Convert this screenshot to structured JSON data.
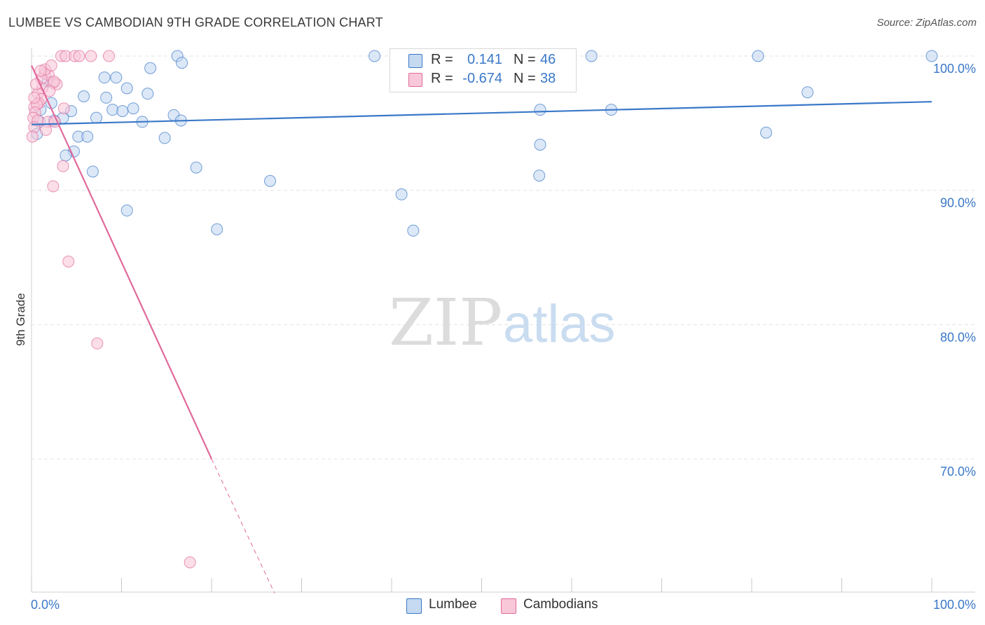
{
  "title": "LUMBEE VS CAMBODIAN 9TH GRADE CORRELATION CHART",
  "source": "Source: ZipAtlas.com",
  "watermark": {
    "zip": "ZIP",
    "atlas": "atlas"
  },
  "colors": {
    "lumbee": "#3a78c8",
    "lumbee_fill": "#c5d9f1",
    "cambodian": "#e0699a",
    "cambodian_fill": "#f8c8d8",
    "grid": "#e3e3e3",
    "axis_label": "#3a78c8"
  },
  "stats": [
    {
      "r_label": "R =",
      "r_value": "0.141",
      "n_label": "N =",
      "n_value": "46"
    },
    {
      "r_label": "R =",
      "r_value": "-0.674",
      "n_label": "N =",
      "n_value": "38"
    }
  ],
  "legend": [
    {
      "label": "Lumbee"
    },
    {
      "label": "Cambodians"
    }
  ],
  "chart_data": {
    "type": "scatter",
    "title": "LUMBEE VS CAMBODIAN 9TH GRADE CORRELATION CHART",
    "xlabel": "",
    "ylabel": "9th Grade",
    "xlim": [
      0,
      100
    ],
    "ylim": [
      60,
      100
    ],
    "x_tick_labels": [
      "0.0%",
      "100.0%"
    ],
    "y_ticks": [
      70,
      80,
      90,
      100
    ],
    "y_tick_labels": [
      "70.0%",
      "80.0%",
      "90.0%",
      "100.0%"
    ],
    "grid": true,
    "legend_position": "bottom-center",
    "series": [
      {
        "name": "Lumbee",
        "points": [
          [
            16.2,
            100
          ],
          [
            38.1,
            100
          ],
          [
            62.2,
            100
          ],
          [
            80.7,
            100
          ],
          [
            100,
            100
          ],
          [
            16.7,
            99.5
          ],
          [
            13.2,
            99.1
          ],
          [
            8.1,
            98.4
          ],
          [
            9.4,
            98.4
          ],
          [
            1.8,
            98.1
          ],
          [
            10.6,
            97.6
          ],
          [
            12.9,
            97.2
          ],
          [
            5.8,
            97.0
          ],
          [
            8.3,
            96.9
          ],
          [
            86.2,
            97.3
          ],
          [
            2.2,
            96.5
          ],
          [
            1.0,
            96.0
          ],
          [
            4.4,
            95.9
          ],
          [
            9.0,
            96.0
          ],
          [
            10.1,
            95.9
          ],
          [
            11.3,
            96.1
          ],
          [
            56.5,
            96.0
          ],
          [
            64.4,
            96.0
          ],
          [
            7.2,
            95.4
          ],
          [
            15.8,
            95.6
          ],
          [
            3.5,
            95.4
          ],
          [
            12.3,
            95.1
          ],
          [
            16.6,
            95.2
          ],
          [
            0.9,
            95.1
          ],
          [
            5.2,
            94.0
          ],
          [
            6.2,
            94.0
          ],
          [
            14.8,
            93.9
          ],
          [
            56.5,
            93.4
          ],
          [
            81.6,
            94.3
          ],
          [
            4.7,
            92.9
          ],
          [
            3.8,
            92.6
          ],
          [
            6.8,
            91.4
          ],
          [
            18.3,
            91.7
          ],
          [
            26.5,
            90.7
          ],
          [
            41.1,
            89.7
          ],
          [
            56.4,
            91.1
          ],
          [
            10.6,
            88.5
          ],
          [
            20.6,
            87.1
          ],
          [
            42.4,
            87.0
          ],
          [
            0.6,
            94.2
          ],
          [
            2.5,
            95.2
          ]
        ],
        "trend": {
          "x": [
            0,
            100
          ],
          "y": [
            94.9,
            96.6
          ]
        },
        "r": 0.141,
        "n": 46
      },
      {
        "name": "Cambodians",
        "points": [
          [
            3.3,
            100
          ],
          [
            3.8,
            100
          ],
          [
            4.8,
            100
          ],
          [
            5.3,
            100
          ],
          [
            6.6,
            100
          ],
          [
            8.6,
            100
          ],
          [
            1.5,
            98.7
          ],
          [
            1.9,
            98.6
          ],
          [
            1.1,
            98.3
          ],
          [
            2.4,
            98.0
          ],
          [
            2.8,
            97.9
          ],
          [
            1.2,
            97.6
          ],
          [
            0.7,
            97.2
          ],
          [
            1.1,
            96.8
          ],
          [
            0.8,
            96.5
          ],
          [
            0.3,
            96.2
          ],
          [
            0.6,
            96.4
          ],
          [
            0.4,
            95.8
          ],
          [
            0.2,
            95.4
          ],
          [
            0.7,
            95.2
          ],
          [
            1.8,
            95.1
          ],
          [
            1.6,
            94.5
          ],
          [
            0.3,
            94.7
          ],
          [
            0.1,
            94.0
          ],
          [
            3.6,
            96.1
          ],
          [
            2.6,
            95.1
          ],
          [
            2.5,
            98.1
          ],
          [
            2.0,
            97.4
          ],
          [
            3.5,
            91.8
          ],
          [
            2.4,
            90.3
          ],
          [
            4.1,
            84.7
          ],
          [
            7.3,
            78.6
          ],
          [
            17.6,
            62.3
          ],
          [
            1.5,
            99.0
          ],
          [
            2.2,
            99.3
          ],
          [
            0.5,
            97.9
          ],
          [
            1.0,
            98.9
          ],
          [
            0.3,
            96.9
          ]
        ],
        "trend": {
          "x": [
            0,
            20,
            27
          ],
          "y": [
            99.3,
            70.0,
            60.0
          ]
        },
        "r": -0.674,
        "n": 38
      }
    ]
  }
}
